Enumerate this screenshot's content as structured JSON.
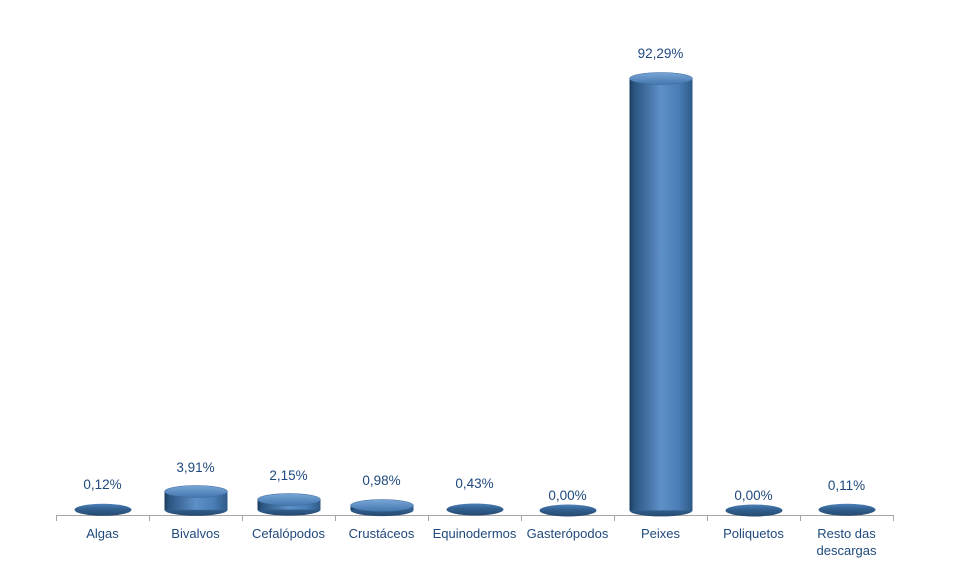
{
  "chart_data": {
    "type": "bar",
    "subtype": "3d-cylinder",
    "title": "",
    "xlabel": "",
    "ylabel": "",
    "unit": "%",
    "grid": false,
    "legend": false,
    "y_axis_visible": false,
    "ylim": [
      0,
      100
    ],
    "categories": [
      "Algas",
      "Bivalvos",
      "Cefalópodos",
      "Crustáceos",
      "Equinodermos",
      "Gasterópodos",
      "Peixes",
      "Poliquetos",
      "Resto das descargas"
    ],
    "values": [
      0.12,
      3.91,
      2.15,
      0.98,
      0.43,
      0.0,
      92.29,
      0.0,
      0.11
    ],
    "data_labels": [
      "0,12%",
      "3,91%",
      "2,15%",
      "0,98%",
      "0,43%",
      "0,00%",
      "92,29%",
      "0,00%",
      "0,11%"
    ],
    "colors": {
      "background": "#FFFFFF",
      "label_text": "#1F497D",
      "axis_line": "#A6A6A6",
      "cylinder_body_left": "#1B3A5C",
      "cylinder_body_left2": "#2B5480",
      "cylinder_body_center": "#5E90C8",
      "cylinder_body_right2": "#4B7EB6",
      "cylinder_body_right": "#2F5A87",
      "cylinder_top_light": "#79A5D6",
      "cylinder_top_base": "#4377AE",
      "cylinder_top_stroke": "#3A699E",
      "flat_top": "#4D80B8",
      "flat_mid": "#31608F",
      "flat_dark": "#26496F"
    }
  }
}
